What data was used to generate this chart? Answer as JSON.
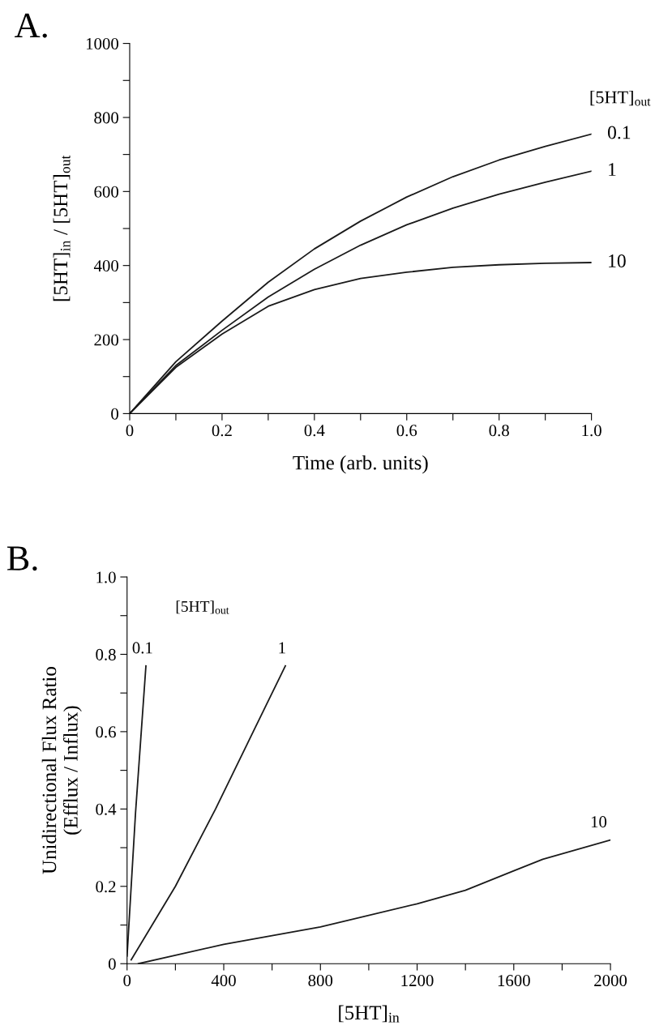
{
  "chart_data": [
    {
      "type": "line",
      "title": "A.",
      "xlabel": "Time (arb. units)",
      "ylabel": "[5HT]$_{in}$ / [5HT]$_{out}$",
      "legend_title": "[5HT]$_{out}$",
      "xlim": [
        0,
        1.0
      ],
      "ylim": [
        0,
        1000
      ],
      "xticks": [
        {
          "value": 0,
          "label": "0"
        },
        {
          "value": 0.1,
          "label": null
        },
        {
          "value": 0.2,
          "label": "0.2"
        },
        {
          "value": 0.3,
          "label": null
        },
        {
          "value": 0.4,
          "label": "0.4"
        },
        {
          "value": 0.5,
          "label": null
        },
        {
          "value": 0.6,
          "label": "0.6"
        },
        {
          "value": 0.7,
          "label": null
        },
        {
          "value": 0.8,
          "label": "0.8"
        },
        {
          "value": 0.9,
          "label": null
        },
        {
          "value": 1.0,
          "label": "1.0"
        }
      ],
      "yticks": [
        0,
        {
          "value": 100,
          "label": null
        },
        200,
        {
          "value": 300,
          "label": null
        },
        400,
        {
          "value": 500,
          "label": null
        },
        600,
        {
          "value": 700,
          "label": null
        },
        800,
        {
          "value": 900,
          "label": null
        },
        1000
      ],
      "x": [
        0,
        0.1,
        0.2,
        0.3,
        0.4,
        0.5,
        0.6,
        0.7,
        0.8,
        0.9,
        1.0
      ],
      "series": [
        {
          "name": "0.1",
          "color": "#1a1a1a",
          "values": [
            0,
            140,
            250,
            355,
            445,
            520,
            585,
            640,
            685,
            722,
            755
          ]
        },
        {
          "name": "1",
          "color": "#1a1a1a",
          "values": [
            0,
            130,
            225,
            315,
            390,
            455,
            510,
            555,
            593,
            625,
            655
          ]
        },
        {
          "name": "10",
          "color": "#1a1a1a",
          "values": [
            0,
            125,
            215,
            290,
            335,
            365,
            382,
            395,
            402,
            406,
            408
          ]
        }
      ]
    },
    {
      "type": "line",
      "title": "B.",
      "xlabel": "[5HT]$_{in}$",
      "ylabel": "Unidirectional Flux Ratio\n(Efflux / Influx)",
      "legend_title": "[5HT]$_{out}$",
      "xlim": [
        0,
        2000
      ],
      "ylim": [
        0,
        1.0
      ],
      "xticks": [
        0,
        {
          "value": 200,
          "label": null
        },
        400,
        {
          "value": 600,
          "label": null
        },
        800,
        {
          "value": 1000,
          "label": null
        },
        1200,
        {
          "value": 1400,
          "label": null
        },
        1600,
        {
          "value": 1800,
          "label": null
        },
        2000
      ],
      "yticks": [
        0,
        {
          "value": 0.1,
          "label": null
        },
        {
          "value": 0.2,
          "label": "0.2"
        },
        {
          "value": 0.3,
          "label": null
        },
        {
          "value": 0.4,
          "label": "0.4"
        },
        {
          "value": 0.5,
          "label": null
        },
        {
          "value": 0.6,
          "label": "0.6"
        },
        {
          "value": 0.7,
          "label": null
        },
        {
          "value": 0.8,
          "label": "0.8"
        },
        {
          "value": 0.9,
          "label": null
        },
        {
          "value": 1.0,
          "label": "1.0"
        }
      ],
      "series": [
        {
          "name": "0.1",
          "color": "#1a1a1a",
          "x": [
            0,
            35,
            78
          ],
          "values": [
            0.02,
            0.39,
            0.77
          ]
        },
        {
          "name": "1",
          "color": "#1a1a1a",
          "x": [
            17,
            200,
            366,
            522,
            655
          ],
          "values": [
            0.01,
            0.2,
            0.4,
            0.6,
            0.77
          ]
        },
        {
          "name": "10",
          "color": "#1a1a1a",
          "x": [
            47,
            400,
            800,
            1200,
            1400,
            1600,
            1720,
            2000
          ],
          "values": [
            0,
            0.05,
            0.095,
            0.155,
            0.19,
            0.24,
            0.27,
            0.32
          ]
        }
      ]
    }
  ]
}
